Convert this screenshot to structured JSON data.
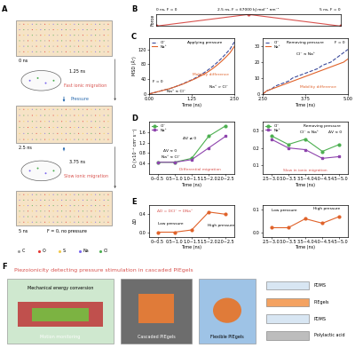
{
  "chart_data": [
    {
      "type": "line",
      "x": [
        0,
        2.5,
        5
      ],
      "values": [
        0,
        67000,
        0
      ],
      "color": "#d9534f",
      "marker": "circle",
      "xlim": [
        0,
        5
      ],
      "ylim": [
        0,
        70000
      ],
      "tick_labels": false,
      "y_label": "Force",
      "annotations": [
        "0 ns, F = 0",
        "2.5 ns, F = 67000 kJ mol⁻¹ nm⁻¹",
        "5 ns, F = 0"
      ]
    },
    {
      "type": "line",
      "x": [
        0,
        0.125,
        0.25,
        0.375,
        0.5,
        0.625,
        0.75,
        0.875,
        1.0,
        1.125,
        1.25,
        1.375,
        1.5,
        1.625,
        1.75,
        1.875,
        2.0,
        2.125,
        2.25,
        2.375,
        2.5
      ],
      "series": [
        {
          "name": "Cl⁻",
          "color": "#3b4a9a",
          "line_style": "dashed",
          "values": [
            0,
            3,
            6,
            9,
            12,
            15,
            19,
            23,
            28,
            33,
            38,
            44,
            51,
            58,
            66,
            75,
            85,
            96,
            108,
            121,
            140
          ]
        },
        {
          "name": "Na⁺",
          "color": "#e0622a",
          "line_style": "solid",
          "values": [
            0,
            3,
            6,
            9,
            12,
            15,
            19,
            23,
            27,
            32,
            37,
            42,
            48,
            54,
            61,
            69,
            78,
            88,
            99,
            111,
            128
          ]
        }
      ],
      "xlim": [
        0,
        2.5
      ],
      "xticks": [
        {
          "value": 0,
          "label": "0.00"
        },
        1.25,
        {
          "value": 2.5,
          "label": "2.50"
        }
      ],
      "ylim": [
        0,
        150
      ],
      "yticks": [
        0,
        40,
        80,
        120
      ],
      "x_label": "Time (ns)",
      "y_label": "MSD (Å²)",
      "legend": "upper left",
      "annotations": [
        "Applying pressure",
        "F = 0",
        "Mobility difference",
        "Na⁺ ≈ Cl⁻",
        "Na⁺ > Cl⁻"
      ]
    },
    {
      "type": "line",
      "x": [
        2.5,
        2.625,
        2.75,
        2.875,
        3.0,
        3.125,
        3.25,
        3.375,
        3.5,
        3.625,
        3.75,
        3.875,
        4.0,
        4.125,
        4.25,
        4.375,
        4.5,
        4.625,
        4.75,
        4.875,
        5.0
      ],
      "series": [
        {
          "name": "Cl⁻",
          "color": "#3b4a9a",
          "line_style": "dashed",
          "values": [
            0,
            2,
            3,
            5,
            6,
            7,
            8,
            10,
            11,
            12,
            13,
            14,
            15,
            16,
            18,
            19,
            20,
            22,
            24,
            26,
            28
          ]
        },
        {
          "name": "Na⁺",
          "color": "#e0622a",
          "line_style": "solid",
          "values": [
            0,
            2,
            3,
            4,
            5,
            6,
            7,
            8,
            9,
            10,
            11,
            12,
            13,
            14,
            15,
            16,
            17,
            18,
            19,
            20,
            22
          ]
        }
      ],
      "xlim": [
        2.5,
        5
      ],
      "xticks": [
        {
          "value": 2.5,
          "label": "2.50"
        },
        3.75,
        {
          "value": 5,
          "label": "5.00"
        }
      ],
      "ylim": [
        0,
        35
      ],
      "yticks": [
        0,
        10,
        20,
        30
      ],
      "x_label": "Time (ns)",
      "legend": "upper left",
      "annotations": [
        "Removing pressure",
        "Cl⁻ ≈ Na⁺",
        "F = 0",
        "Mobility difference"
      ]
    },
    {
      "type": "line",
      "categories": [
        "0~0.5",
        "0.5~1.0",
        "1.0~1.5",
        "1.5~2.0",
        "2.0~2.5"
      ],
      "series": [
        {
          "name": "Cl⁻",
          "color": "#4caf50",
          "marker": "circle",
          "values": [
            0.45,
            0.45,
            0.6,
            1.45,
            1.85
          ]
        },
        {
          "name": "Na⁺",
          "color": "#8e44ad",
          "marker": "square",
          "values": [
            0.45,
            0.45,
            0.55,
            1.0,
            1.45
          ]
        }
      ],
      "ylim": [
        0,
        2.0
      ],
      "yticks": [
        0.4,
        0.8,
        1.2,
        1.6
      ],
      "x_label": "Time (ns)",
      "y_label": "D (×10⁻⁵ cm² s⁻¹)",
      "legend": "upper left",
      "annotations": [
        "Na⁺ ≈ Cl⁻",
        "ΔV ≈ 0",
        "ΔV ≠ 0",
        "Differential migration"
      ]
    },
    {
      "type": "line",
      "categories": [
        "2.5~3.0",
        "3.0~3.5",
        "3.5~4.0",
        "4.0~4.5",
        "4.5~5.0"
      ],
      "series": [
        {
          "name": "Cl⁻",
          "color": "#4caf50",
          "marker": "circle",
          "values": [
            0.27,
            0.22,
            0.25,
            0.18,
            0.22
          ]
        },
        {
          "name": "Na⁺",
          "color": "#8e44ad",
          "marker": "square",
          "values": [
            0.25,
            0.2,
            0.19,
            0.14,
            0.15
          ]
        }
      ],
      "ylim": [
        0.05,
        0.35
      ],
      "yticks": [
        0.1,
        0.2,
        0.3
      ],
      "x_label": "Time (ns)",
      "legend": "upper left",
      "annotations": [
        "Removing pressure",
        "Cl⁻ ≈ Na⁺",
        "ΔV ≈ 0",
        "Slow in ionic migration"
      ]
    },
    {
      "type": "line",
      "categories": [
        "0~0.5",
        "0.5~1.0",
        "1.0~1.5",
        "1.5~2.0",
        "2.0~2.5"
      ],
      "values": [
        0,
        0,
        0.05,
        0.45,
        0.4
      ],
      "color": "#e0622a",
      "marker": "circle",
      "ylim": [
        -0.1,
        0.6
      ],
      "yticks": [
        {
          "value": 0,
          "label": "0.0"
        },
        0.4
      ],
      "x_label": "Time (ns)",
      "y_label": "ΔD",
      "annotations": [
        "Low pressure",
        "High pressure",
        "ΔD = DCl⁻ − DNa⁺"
      ]
    },
    {
      "type": "line",
      "categories": [
        "2.5~3.0",
        "3.0~3.5",
        "3.5~4.0",
        "4.0~4.5",
        "4.5~5.0"
      ],
      "values": [
        0.02,
        0.02,
        0.06,
        0.04,
        0.07
      ],
      "color": "#e0622a",
      "marker": "circle",
      "ylim": [
        -0.02,
        0.12
      ],
      "yticks": [
        {
          "value": 0,
          "label": "0.0"
        },
        0.1
      ],
      "x_label": "Time (ns)",
      "annotations": [
        "Low pressure",
        "High pressure"
      ]
    }
  ],
  "figure": {
    "panel_labels": [
      "A",
      "B",
      "C",
      "D",
      "E",
      "F"
    ],
    "panel_a": {
      "times": [
        "0 ns",
        "1.25 ns",
        "2.5 ns",
        "3.75 ns",
        "5 ns"
      ],
      "notes": [
        "Fast ionic migration",
        "Pressure",
        "Slow ionic migration",
        "F = 0, no pressure"
      ],
      "elements": [
        {
          "label": "C",
          "color": "#9e9e9e"
        },
        {
          "label": "O",
          "color": "#e53935"
        },
        {
          "label": "S",
          "color": "#f2c94c"
        },
        {
          "label": "Na",
          "color": "#7b68ee"
        },
        {
          "label": "Cl",
          "color": "#4caf50"
        }
      ]
    },
    "panel_f": {
      "title": "Piezoionicity detecting pressure stimulation in cascaded PIEgels",
      "images": [
        "Mechanical energy conversion",
        "Motion monitoring",
        "Cascaded PIEgels",
        "Flexible PIEgels"
      ],
      "layers": [
        "PDMS",
        "PIEgels",
        "PDMS",
        "Polylactic acid"
      ]
    }
  }
}
